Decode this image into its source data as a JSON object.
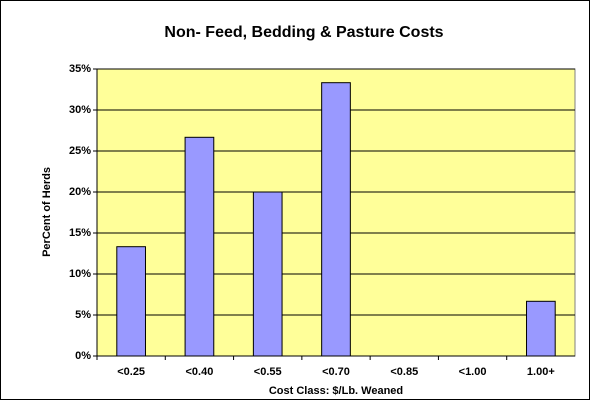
{
  "chart_data": {
    "type": "bar",
    "title": "Non- Feed, Bedding & Pasture Costs",
    "x_label": "Cost Class: $/Lb. Weaned",
    "y_label": "PerCent of Herds",
    "categories": [
      "<0.25",
      "<0.40",
      "<0.55",
      "<0.70",
      "<0.85",
      "<1.00",
      "1.00+"
    ],
    "values": [
      13.33,
      26.67,
      20,
      33.33,
      0,
      0,
      6.67
    ],
    "color": "#9999ff",
    "plot_background": "#ffff99",
    "ylim": [
      0,
      35
    ],
    "yticks": [
      {
        "value": 0,
        "label": "0%"
      },
      {
        "value": 5,
        "label": "5%"
      },
      {
        "value": 10,
        "label": "10%"
      },
      {
        "value": 15,
        "label": "15%"
      },
      {
        "value": 20,
        "label": "20%"
      },
      {
        "value": 25,
        "label": "25%"
      },
      {
        "value": 30,
        "label": "30%"
      },
      {
        "value": 35,
        "label": "35%"
      }
    ],
    "grid": true
  }
}
